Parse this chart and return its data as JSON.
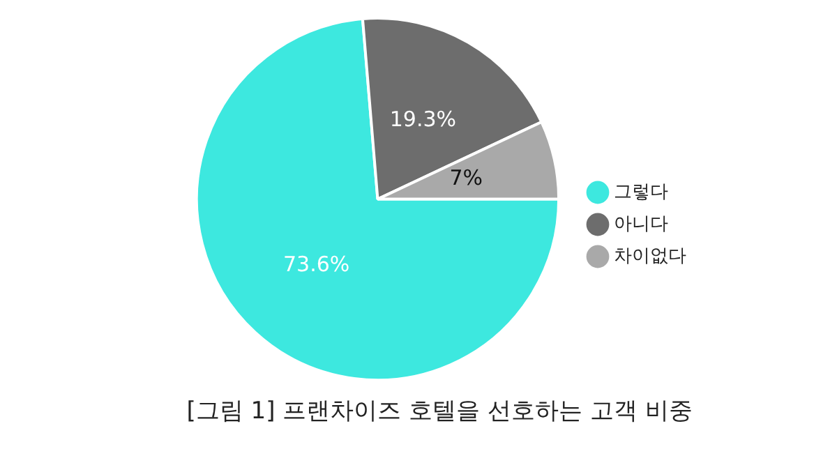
{
  "chart_data": {
    "type": "pie",
    "title": "[그림 1] 프랜차이즈 호텔을 선호하는 고객 비중",
    "categories": [
      "그렇다",
      "아니다",
      "차이없다"
    ],
    "values": [
      73.6,
      19.3,
      7
    ],
    "value_labels": [
      "73.6%",
      "19.3%",
      "7%"
    ],
    "colors": [
      "#3de8df",
      "#6d6d6d",
      "#a9a9a9"
    ],
    "legend": "right"
  }
}
